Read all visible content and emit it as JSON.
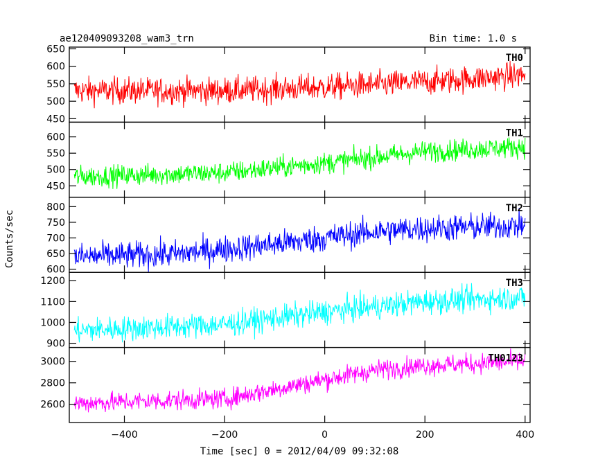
{
  "header": {
    "title": "ae120409093208_wam3_trn",
    "bin_time": "Bin time: 1.0 s"
  },
  "chart_data": {
    "type": "line",
    "title": "ae120409093208_wam3_trn",
    "subtitle": "Bin time: 1.0 s",
    "xlabel": "Time [sec] 0 = 2012/04/09 09:32:08",
    "ylabel": "Counts/sec",
    "xlim": [
      -510,
      410
    ],
    "x_ticks": [
      -400,
      -200,
      0,
      200,
      400
    ],
    "x_tick_labels": [
      "−400",
      "−200",
      "0",
      "200",
      "400"
    ],
    "x_range_data": [
      -500,
      400
    ],
    "grid": false,
    "panels": [
      {
        "name": "TH0",
        "color": "#ff0000",
        "ylim": [
          440,
          655
        ],
        "y_ticks": [
          450,
          500,
          550,
          600,
          650
        ],
        "trend_x": [
          -500,
          -200,
          0,
          200,
          400
        ],
        "trend_y": [
          530,
          530,
          540,
          555,
          575
        ],
        "noise_amplitude": 35
      },
      {
        "name": "TH1",
        "color": "#00ff00",
        "ylim": [
          415,
          645
        ],
        "y_ticks": [
          450,
          500,
          550,
          600
        ],
        "trend_x": [
          -500,
          -200,
          0,
          200,
          400
        ],
        "trend_y": [
          478,
          490,
          520,
          555,
          570
        ],
        "noise_amplitude": 30
      },
      {
        "name": "TH2",
        "color": "#0000ff",
        "ylim": [
          590,
          830
        ],
        "y_ticks": [
          600,
          650,
          700,
          750,
          800
        ],
        "trend_x": [
          -500,
          -300,
          -100,
          0,
          100,
          200,
          400
        ],
        "trend_y": [
          640,
          648,
          680,
          700,
          720,
          730,
          740
        ],
        "noise_amplitude": 40
      },
      {
        "name": "TH3",
        "color": "#00ffff",
        "ylim": [
          880,
          1240
        ],
        "y_ticks": [
          900,
          1000,
          1100,
          1200
        ],
        "trend_x": [
          -500,
          -200,
          0,
          200,
          400
        ],
        "trend_y": [
          960,
          990,
          1050,
          1100,
          1120
        ],
        "noise_amplitude": 55
      },
      {
        "name": "TH0123",
        "color": "#ff00ff",
        "ylim": [
          2430,
          3130
        ],
        "y_ticks": [
          2600,
          2800,
          3000
        ],
        "trend_x": [
          -500,
          -200,
          -100,
          0,
          100,
          200,
          400
        ],
        "trend_y": [
          2610,
          2650,
          2740,
          2830,
          2920,
          2960,
          3000
        ],
        "noise_amplitude": 85
      }
    ]
  }
}
